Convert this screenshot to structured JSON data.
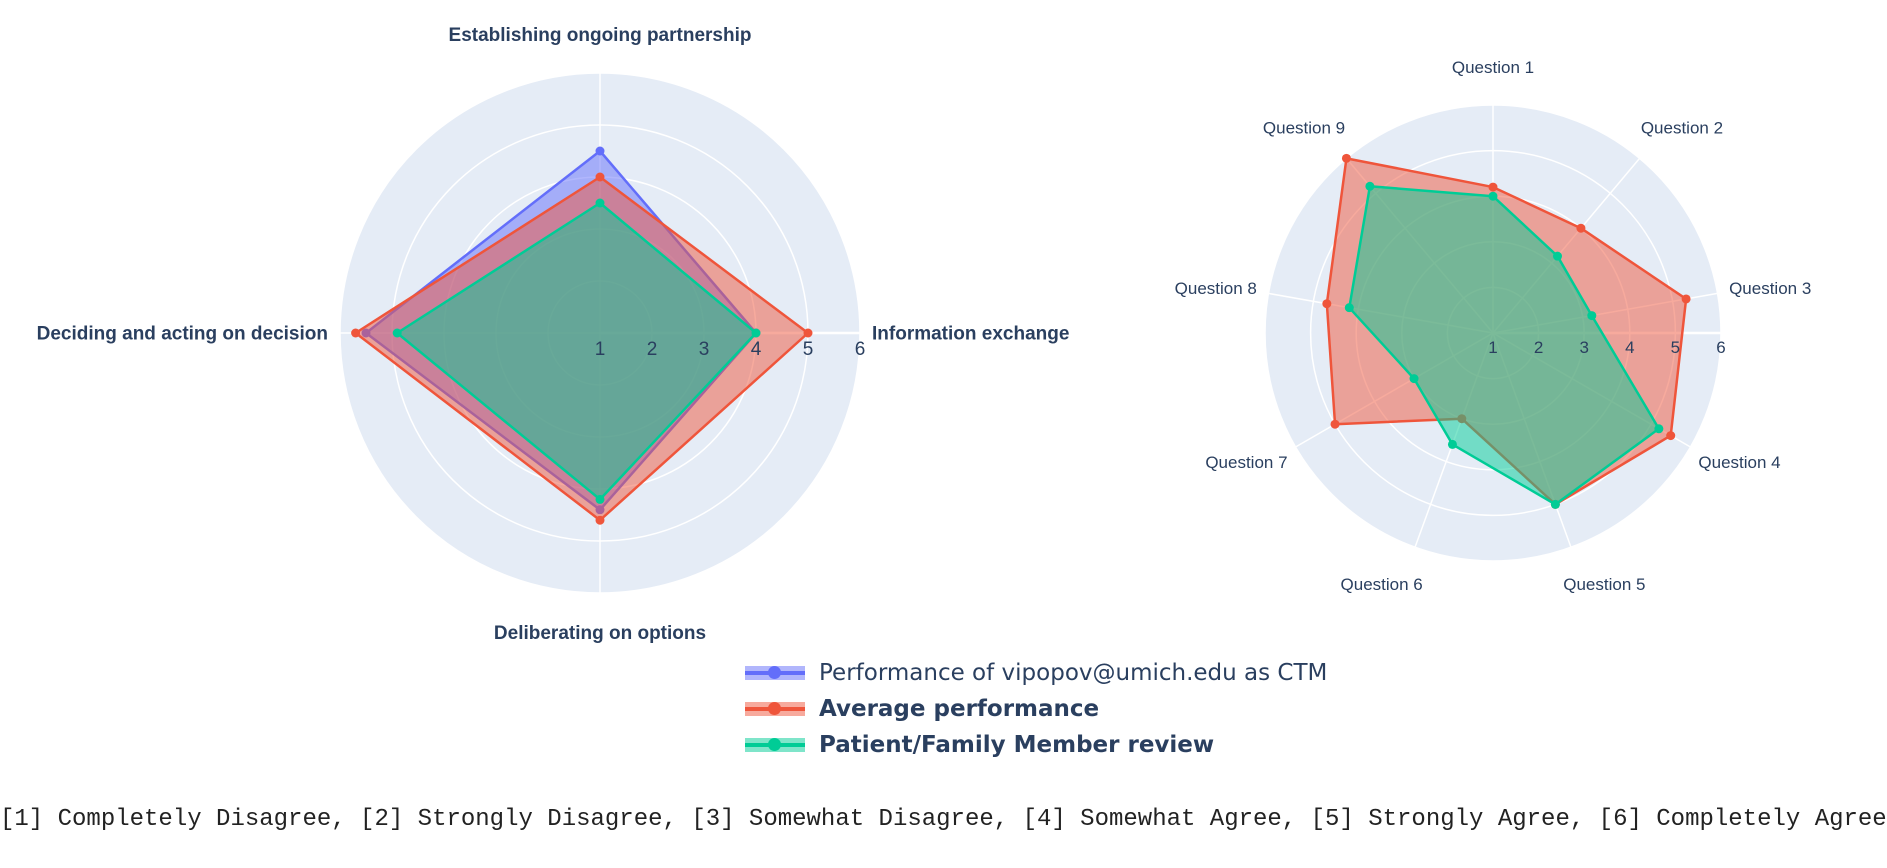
{
  "chart_data": [
    {
      "type": "radar",
      "axes": [
        "Establishing ongoing partnership",
        "Information exchange",
        "Deliberating on options",
        "Deciding and acting on decision"
      ],
      "radial_range": [
        1,
        6
      ],
      "radial_ticks": [
        "1",
        "2",
        "3",
        "4",
        "5",
        "6"
      ],
      "series": [
        {
          "name": "Performance of vipopov@umich.edu as CTM",
          "values": [
            4.5,
            4.0,
            4.4,
            5.5
          ]
        },
        {
          "name": "Average performance",
          "values": [
            4.0,
            5.0,
            4.6,
            5.7
          ]
        },
        {
          "name": "Patient/Family Member review",
          "values": [
            3.5,
            4.0,
            4.2,
            4.9
          ]
        }
      ]
    },
    {
      "type": "radar",
      "axes": [
        "Question 1",
        "Question 2",
        "Question 3",
        "Question 4",
        "Question 5",
        "Question 6",
        "Question 7",
        "Question 8",
        "Question 9"
      ],
      "radial_range": [
        1,
        6
      ],
      "radial_ticks": [
        "1",
        "2",
        "3",
        "4",
        "5",
        "6"
      ],
      "series": [
        {
          "name": "Average performance",
          "values": [
            4.2,
            4.0,
            5.3,
            5.5,
            5.0,
            3.0,
            5.0,
            4.7,
            6.0
          ]
        },
        {
          "name": "Patient/Family Member review",
          "values": [
            4.0,
            3.2,
            3.2,
            5.2,
            5.0,
            3.6,
            3.0,
            4.2,
            5.2
          ]
        }
      ]
    }
  ],
  "legend": [
    {
      "label": "Performance of vipopov@umich.edu as CTM",
      "bold": false
    },
    {
      "label": "Average performance",
      "bold": true
    },
    {
      "label": "Patient/Family Member review",
      "bold": true
    }
  ],
  "footnote": "[1] Completely Disagree, [2] Strongly Disagree, [3] Somewhat Disagree, [4] Somewhat Agree, [5] Strongly Agree, [6] Completely Agree",
  "colors": {
    "background": "#e5ecf6",
    "grid": "#ffffff",
    "text": "#2a3f5f",
    "series": [
      "#636efa",
      "#ef553b",
      "#00cc96"
    ]
  }
}
